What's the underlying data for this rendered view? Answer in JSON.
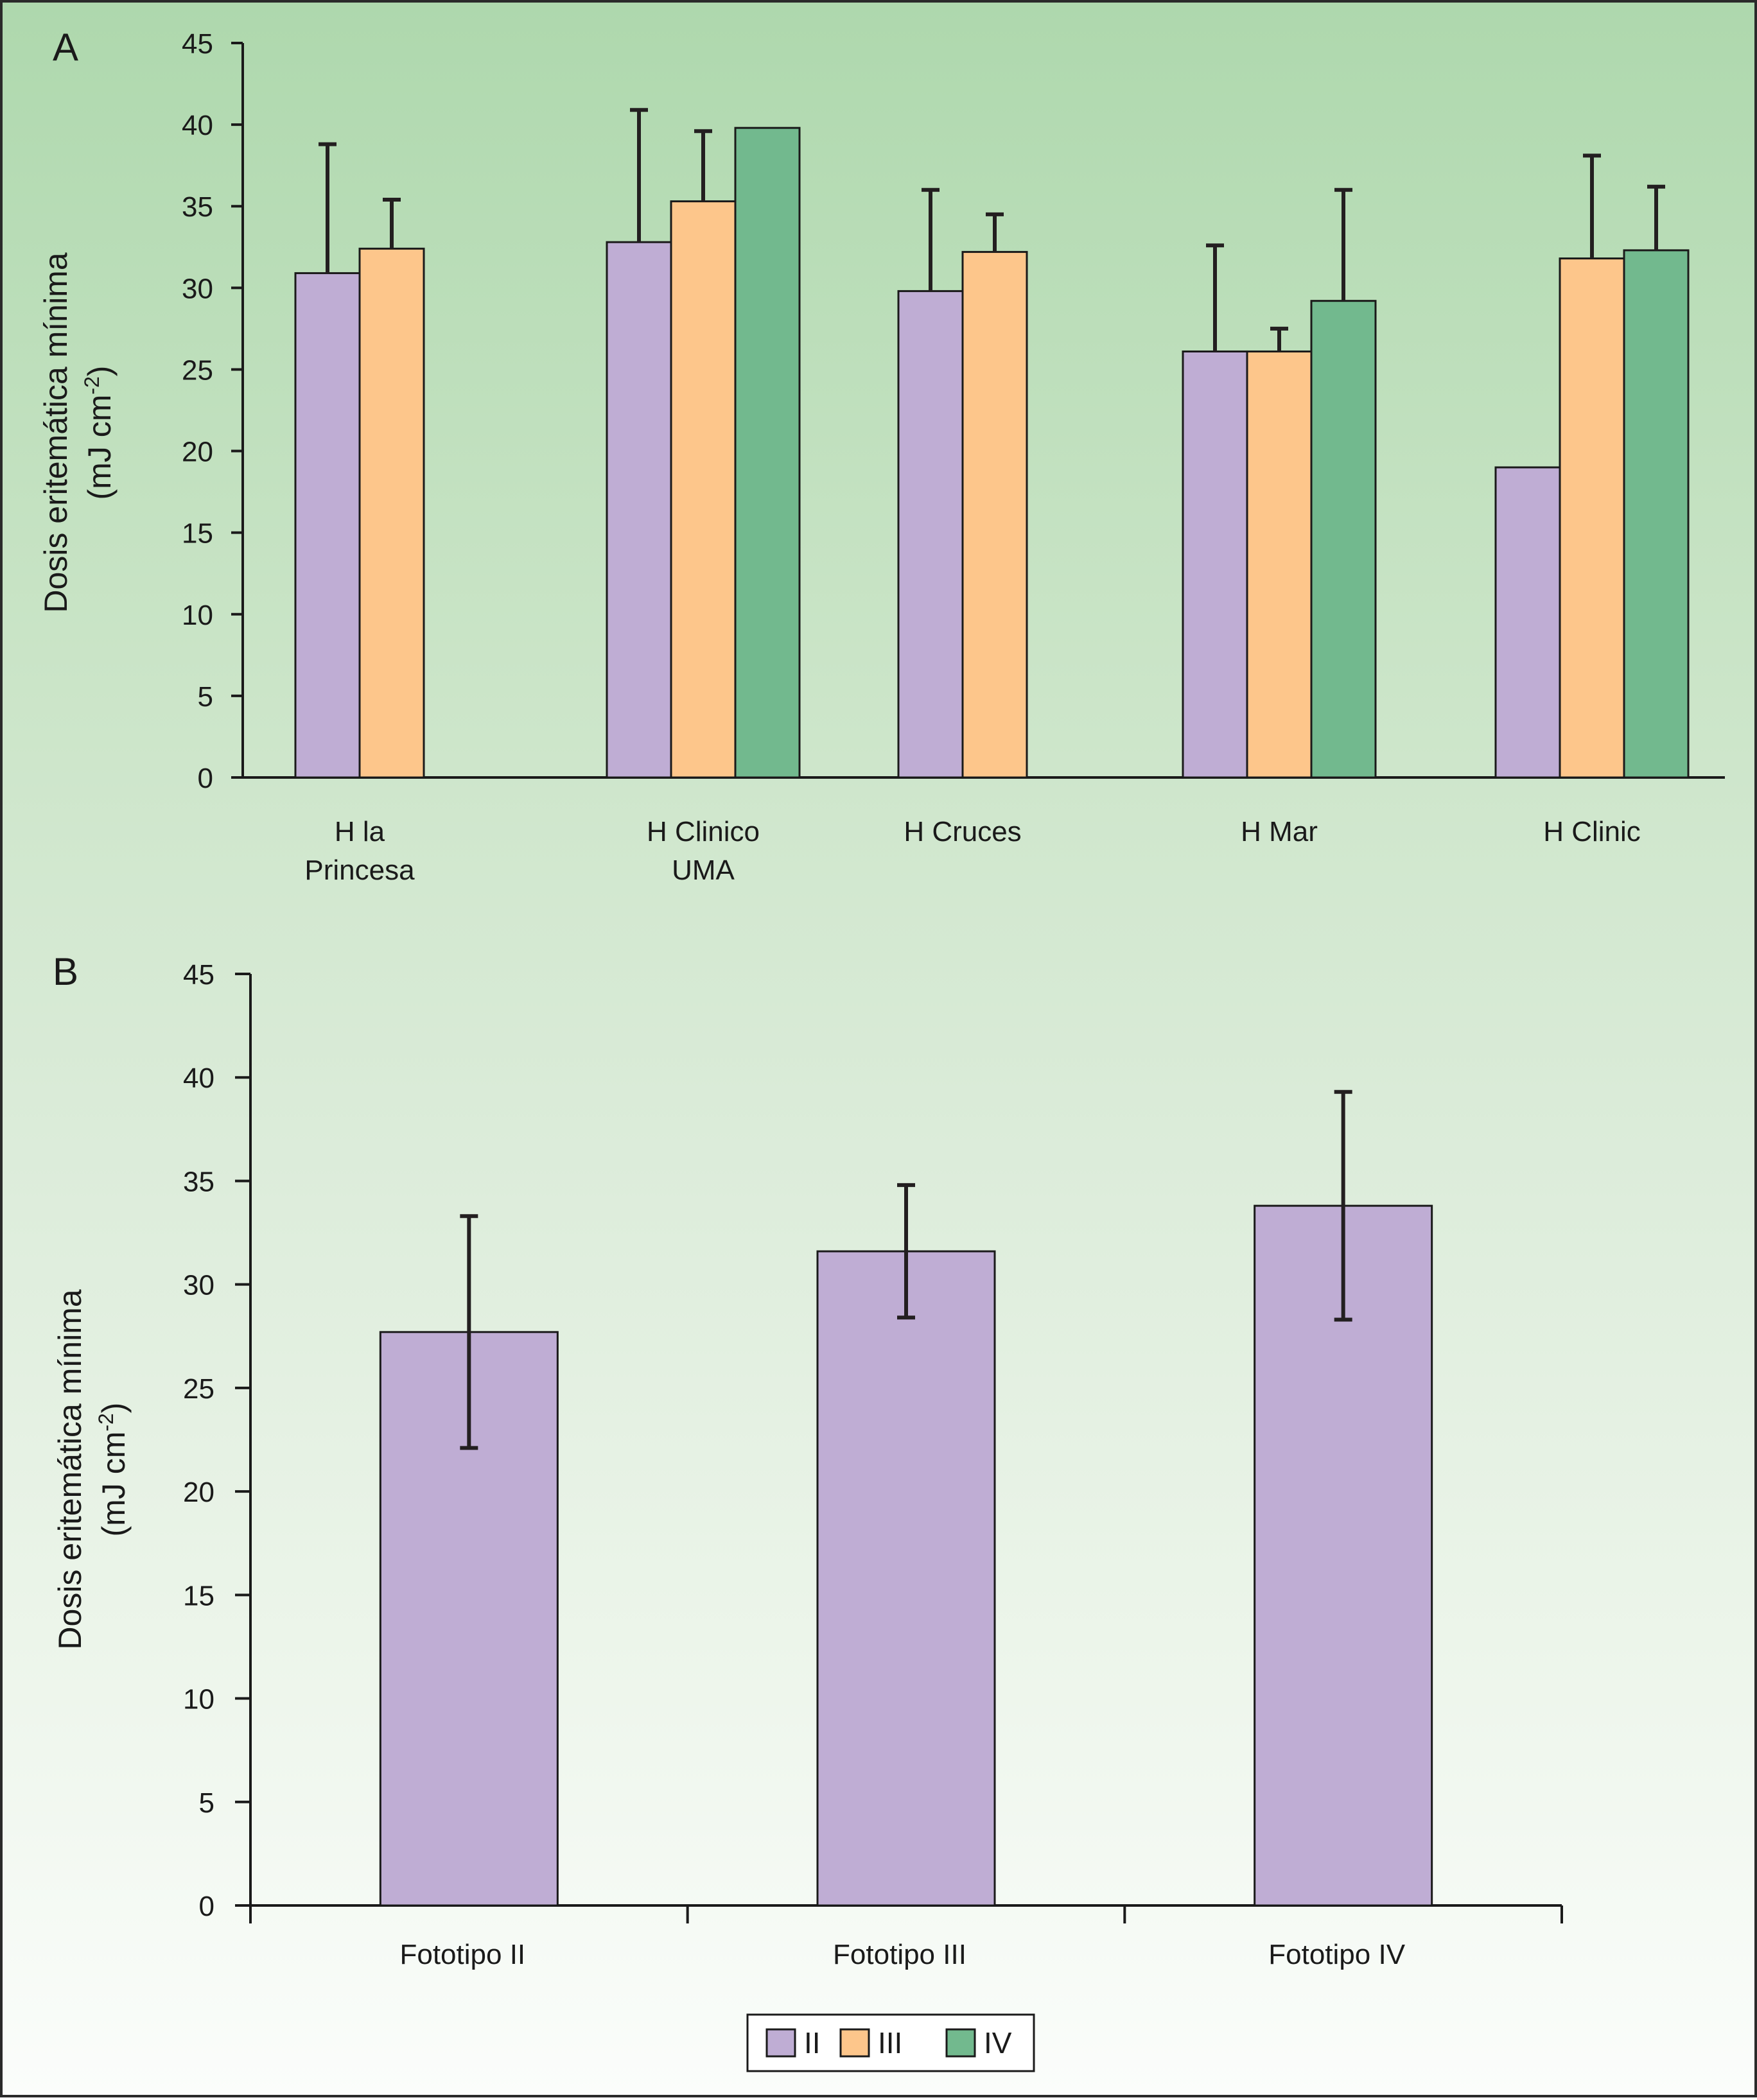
{
  "colors": {
    "II": "#bfadd4",
    "III": "#fdc68b",
    "IV": "#72b98e",
    "axis": "#1a1a1a",
    "errorbar": "#231f20"
  },
  "legend": {
    "items": [
      {
        "key": "II",
        "label": "II"
      },
      {
        "key": "III",
        "label": "III"
      },
      {
        "key": "IV",
        "label": "IV"
      }
    ],
    "placement": "bottom-center"
  },
  "chart_data": [
    {
      "panel": "A",
      "type": "bar",
      "ylabel_line1": "Dosis eritemática mínima",
      "ylabel_line2_pre": "(mJ cm",
      "ylabel_line2_sup": "-2",
      "ylabel_line2_post": ")",
      "ylim": [
        0,
        45
      ],
      "yticks": [
        0,
        5,
        10,
        15,
        20,
        25,
        30,
        35,
        40,
        45
      ],
      "categories": [
        {
          "lines": [
            "H la",
            "Princesa"
          ]
        },
        {
          "lines": [
            "H Clinico",
            "UMA"
          ]
        },
        {
          "lines": [
            "H Cruces"
          ]
        },
        {
          "lines": [
            "H Mar"
          ]
        },
        {
          "lines": [
            "H Clinic"
          ]
        }
      ],
      "series": [
        {
          "name": "II",
          "values": [
            30.9,
            32.8,
            29.8,
            26.1,
            19.0
          ],
          "errors": [
            7.9,
            8.1,
            6.2,
            6.5,
            null
          ]
        },
        {
          "name": "III",
          "values": [
            32.4,
            35.3,
            32.2,
            26.1,
            31.8
          ],
          "errors": [
            3.0,
            4.3,
            2.3,
            1.4,
            6.3
          ]
        },
        {
          "name": "IV",
          "values": [
            null,
            39.8,
            null,
            29.2,
            32.3
          ],
          "errors": [
            null,
            null,
            null,
            6.8,
            3.9
          ]
        }
      ],
      "grid": false
    },
    {
      "panel": "B",
      "type": "bar",
      "ylabel_line1": "Dosis eritemática mínima",
      "ylabel_line2_pre": "(mJ cm",
      "ylabel_line2_sup": "-2",
      "ylabel_line2_post": ")",
      "ylim": [
        0,
        45
      ],
      "yticks": [
        0,
        5,
        10,
        15,
        20,
        25,
        30,
        35,
        40,
        45
      ],
      "categories": [
        {
          "lines": [
            "Fototipo II"
          ]
        },
        {
          "lines": [
            "Fototipo III"
          ]
        },
        {
          "lines": [
            "Fototipo IV"
          ]
        }
      ],
      "series": [
        {
          "name": "II",
          "values": [
            27.7,
            31.6,
            33.8
          ],
          "errors": [
            5.6,
            3.2,
            5.5
          ]
        }
      ],
      "grid": false
    }
  ]
}
